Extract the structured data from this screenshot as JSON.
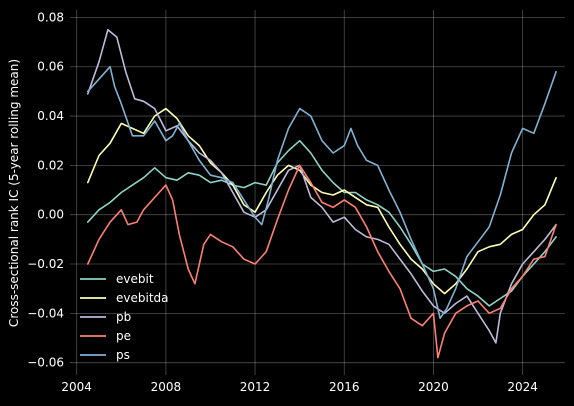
{
  "chart_data": {
    "type": "line",
    "title": "",
    "xlabel": "",
    "ylabel": "Cross-sectional rank IC (5-year rolling mean)",
    "xlim": [
      2003.7,
      2025.9
    ],
    "ylim": [
      -0.065,
      0.083
    ],
    "xticks": [
      2004,
      2008,
      2012,
      2016,
      2020,
      2024
    ],
    "xtick_labels": [
      "2004",
      "2008",
      "2012",
      "2016",
      "2020",
      "2024"
    ],
    "yticks": [
      -0.06,
      -0.04,
      -0.02,
      0.0,
      0.02,
      0.04,
      0.06,
      0.08
    ],
    "ytick_labels": [
      "−0.06",
      "−0.04",
      "−0.02",
      "0.00",
      "0.02",
      "0.04",
      "0.06",
      "0.08"
    ],
    "grid": true,
    "legend_position": "lower-left",
    "background": "#000000",
    "series": [
      {
        "name": "evebit",
        "color": "#8dd3c7",
        "points": [
          [
            2004.5,
            -0.003
          ],
          [
            2005.0,
            0.002
          ],
          [
            2005.5,
            0.005
          ],
          [
            2006.0,
            0.009
          ],
          [
            2006.5,
            0.012
          ],
          [
            2007.0,
            0.015
          ],
          [
            2007.5,
            0.019
          ],
          [
            2008.0,
            0.015
          ],
          [
            2008.5,
            0.014
          ],
          [
            2009.0,
            0.017
          ],
          [
            2009.5,
            0.016
          ],
          [
            2010.0,
            0.013
          ],
          [
            2010.5,
            0.014
          ],
          [
            2011.0,
            0.012
          ],
          [
            2011.5,
            0.011
          ],
          [
            2012.0,
            0.013
          ],
          [
            2012.5,
            0.012
          ],
          [
            2013.0,
            0.021
          ],
          [
            2013.5,
            0.026
          ],
          [
            2014.0,
            0.03
          ],
          [
            2014.5,
            0.025
          ],
          [
            2015.0,
            0.018
          ],
          [
            2015.5,
            0.013
          ],
          [
            2016.0,
            0.009
          ],
          [
            2016.5,
            0.009
          ],
          [
            2017.0,
            0.006
          ],
          [
            2017.5,
            0.004
          ],
          [
            2018.0,
            0.001
          ],
          [
            2018.5,
            -0.005
          ],
          [
            2019.0,
            -0.012
          ],
          [
            2019.5,
            -0.02
          ],
          [
            2020.0,
            -0.023
          ],
          [
            2020.5,
            -0.022
          ],
          [
            2021.0,
            -0.025
          ],
          [
            2021.5,
            -0.03
          ],
          [
            2022.0,
            -0.033
          ],
          [
            2022.5,
            -0.037
          ],
          [
            2023.0,
            -0.034
          ],
          [
            2023.5,
            -0.031
          ],
          [
            2024.0,
            -0.025
          ],
          [
            2024.5,
            -0.02
          ],
          [
            2025.0,
            -0.015
          ],
          [
            2025.5,
            -0.009
          ]
        ]
      },
      {
        "name": "evebitda",
        "color": "#ffffb3",
        "points": [
          [
            2004.5,
            0.013
          ],
          [
            2005.0,
            0.024
          ],
          [
            2005.5,
            0.029
          ],
          [
            2006.0,
            0.037
          ],
          [
            2006.5,
            0.035
          ],
          [
            2007.0,
            0.033
          ],
          [
            2007.5,
            0.04
          ],
          [
            2008.0,
            0.043
          ],
          [
            2008.5,
            0.039
          ],
          [
            2009.0,
            0.032
          ],
          [
            2009.5,
            0.028
          ],
          [
            2010.0,
            0.021
          ],
          [
            2010.5,
            0.017
          ],
          [
            2011.0,
            0.012
          ],
          [
            2011.5,
            0.004
          ],
          [
            2012.0,
            0.001
          ],
          [
            2012.5,
            0.009
          ],
          [
            2013.0,
            0.016
          ],
          [
            2013.5,
            0.02
          ],
          [
            2014.0,
            0.018
          ],
          [
            2014.5,
            0.012
          ],
          [
            2015.0,
            0.009
          ],
          [
            2015.5,
            0.008
          ],
          [
            2016.0,
            0.01
          ],
          [
            2016.5,
            0.007
          ],
          [
            2017.0,
            0.004
          ],
          [
            2017.5,
            0.003
          ],
          [
            2018.0,
            -0.005
          ],
          [
            2018.5,
            -0.012
          ],
          [
            2019.0,
            -0.018
          ],
          [
            2019.5,
            -0.022
          ],
          [
            2020.0,
            -0.028
          ],
          [
            2020.5,
            -0.032
          ],
          [
            2021.0,
            -0.028
          ],
          [
            2021.5,
            -0.022
          ],
          [
            2022.0,
            -0.015
          ],
          [
            2022.5,
            -0.013
          ],
          [
            2023.0,
            -0.012
          ],
          [
            2023.5,
            -0.008
          ],
          [
            2024.0,
            -0.006
          ],
          [
            2024.5,
            0.0
          ],
          [
            2025.0,
            0.004
          ],
          [
            2025.5,
            0.015
          ]
        ]
      },
      {
        "name": "pb",
        "color": "#bebada",
        "points": [
          [
            2004.5,
            0.049
          ],
          [
            2005.0,
            0.062
          ],
          [
            2005.4,
            0.075
          ],
          [
            2005.8,
            0.072
          ],
          [
            2006.2,
            0.058
          ],
          [
            2006.6,
            0.047
          ],
          [
            2007.0,
            0.046
          ],
          [
            2007.5,
            0.043
          ],
          [
            2008.0,
            0.034
          ],
          [
            2008.5,
            0.036
          ],
          [
            2009.0,
            0.03
          ],
          [
            2009.5,
            0.025
          ],
          [
            2010.0,
            0.022
          ],
          [
            2010.5,
            0.017
          ],
          [
            2011.0,
            0.009
          ],
          [
            2011.5,
            0.001
          ],
          [
            2012.0,
            -0.001
          ],
          [
            2012.5,
            0.002
          ],
          [
            2013.0,
            0.01
          ],
          [
            2013.5,
            0.018
          ],
          [
            2014.0,
            0.02
          ],
          [
            2014.5,
            0.007
          ],
          [
            2015.0,
            0.003
          ],
          [
            2015.5,
            -0.003
          ],
          [
            2016.0,
            -0.001
          ],
          [
            2016.5,
            -0.006
          ],
          [
            2017.0,
            -0.009
          ],
          [
            2017.5,
            -0.01
          ],
          [
            2018.0,
            -0.012
          ],
          [
            2018.5,
            -0.018
          ],
          [
            2019.0,
            -0.024
          ],
          [
            2019.5,
            -0.031
          ],
          [
            2020.0,
            -0.037
          ],
          [
            2020.5,
            -0.04
          ],
          [
            2021.0,
            -0.036
          ],
          [
            2021.5,
            -0.033
          ],
          [
            2022.0,
            -0.04
          ],
          [
            2022.5,
            -0.047
          ],
          [
            2022.8,
            -0.052
          ],
          [
            2023.0,
            -0.04
          ],
          [
            2023.5,
            -0.028
          ],
          [
            2024.0,
            -0.02
          ],
          [
            2024.5,
            -0.015
          ],
          [
            2025.0,
            -0.01
          ],
          [
            2025.5,
            -0.004
          ]
        ]
      },
      {
        "name": "pe",
        "color": "#fb8072",
        "points": [
          [
            2004.5,
            -0.02
          ],
          [
            2005.0,
            -0.01
          ],
          [
            2005.5,
            -0.003
          ],
          [
            2006.0,
            0.002
          ],
          [
            2006.3,
            -0.004
          ],
          [
            2006.7,
            -0.003
          ],
          [
            2007.0,
            0.002
          ],
          [
            2007.5,
            0.007
          ],
          [
            2008.0,
            0.012
          ],
          [
            2008.3,
            0.006
          ],
          [
            2008.6,
            -0.008
          ],
          [
            2009.0,
            -0.022
          ],
          [
            2009.3,
            -0.028
          ],
          [
            2009.7,
            -0.012
          ],
          [
            2010.0,
            -0.008
          ],
          [
            2010.5,
            -0.011
          ],
          [
            2011.0,
            -0.013
          ],
          [
            2011.5,
            -0.018
          ],
          [
            2012.0,
            -0.02
          ],
          [
            2012.5,
            -0.015
          ],
          [
            2013.0,
            -0.002
          ],
          [
            2013.5,
            0.01
          ],
          [
            2014.0,
            0.02
          ],
          [
            2014.5,
            0.013
          ],
          [
            2015.0,
            0.005
          ],
          [
            2015.5,
            0.003
          ],
          [
            2016.0,
            0.006
          ],
          [
            2016.5,
            0.003
          ],
          [
            2017.0,
            -0.005
          ],
          [
            2017.5,
            -0.015
          ],
          [
            2018.0,
            -0.023
          ],
          [
            2018.5,
            -0.03
          ],
          [
            2019.0,
            -0.042
          ],
          [
            2019.5,
            -0.045
          ],
          [
            2020.0,
            -0.04
          ],
          [
            2020.2,
            -0.058
          ],
          [
            2020.5,
            -0.048
          ],
          [
            2021.0,
            -0.04
          ],
          [
            2021.5,
            -0.037
          ],
          [
            2022.0,
            -0.035
          ],
          [
            2022.5,
            -0.04
          ],
          [
            2023.0,
            -0.038
          ],
          [
            2023.5,
            -0.03
          ],
          [
            2024.0,
            -0.025
          ],
          [
            2024.5,
            -0.018
          ],
          [
            2025.0,
            -0.017
          ],
          [
            2025.5,
            -0.004
          ]
        ]
      },
      {
        "name": "ps",
        "color": "#80b1d3",
        "points": [
          [
            2004.5,
            0.05
          ],
          [
            2005.0,
            0.055
          ],
          [
            2005.5,
            0.06
          ],
          [
            2005.7,
            0.052
          ],
          [
            2006.0,
            0.045
          ],
          [
            2006.5,
            0.032
          ],
          [
            2007.0,
            0.032
          ],
          [
            2007.5,
            0.038
          ],
          [
            2008.0,
            0.03
          ],
          [
            2008.3,
            0.032
          ],
          [
            2008.6,
            0.037
          ],
          [
            2009.0,
            0.03
          ],
          [
            2009.5,
            0.022
          ],
          [
            2010.0,
            0.016
          ],
          [
            2010.5,
            0.015
          ],
          [
            2011.0,
            0.013
          ],
          [
            2011.5,
            0.006
          ],
          [
            2012.0,
            -0.001
          ],
          [
            2012.3,
            -0.004
          ],
          [
            2012.6,
            0.006
          ],
          [
            2013.0,
            0.022
          ],
          [
            2013.5,
            0.035
          ],
          [
            2014.0,
            0.043
          ],
          [
            2014.5,
            0.04
          ],
          [
            2015.0,
            0.03
          ],
          [
            2015.5,
            0.025
          ],
          [
            2016.0,
            0.028
          ],
          [
            2016.3,
            0.035
          ],
          [
            2016.6,
            0.028
          ],
          [
            2017.0,
            0.022
          ],
          [
            2017.5,
            0.02
          ],
          [
            2018.0,
            0.01
          ],
          [
            2018.5,
            0.001
          ],
          [
            2019.0,
            -0.01
          ],
          [
            2019.5,
            -0.02
          ],
          [
            2020.0,
            -0.03
          ],
          [
            2020.3,
            -0.042
          ],
          [
            2020.6,
            -0.038
          ],
          [
            2021.0,
            -0.03
          ],
          [
            2021.5,
            -0.017
          ],
          [
            2022.0,
            -0.011
          ],
          [
            2022.5,
            -0.005
          ],
          [
            2023.0,
            0.008
          ],
          [
            2023.5,
            0.025
          ],
          [
            2024.0,
            0.035
          ],
          [
            2024.5,
            0.033
          ],
          [
            2025.0,
            0.045
          ],
          [
            2025.5,
            0.058
          ]
        ]
      }
    ]
  }
}
